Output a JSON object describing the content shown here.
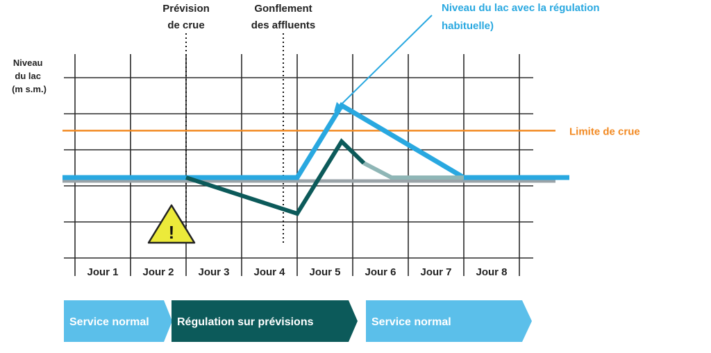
{
  "chart_data": {
    "type": "line",
    "ylabel": "Niveau du lac (m s.m.)",
    "categories": [
      "Jour 1",
      "Jour 2",
      "Jour 3",
      "Jour 4",
      "Jour 5",
      "Jour 6",
      "Jour 7",
      "Jour 8"
    ],
    "x": [
      0,
      2,
      4,
      4.8,
      7,
      8
    ],
    "series": [
      {
        "name": "Niveau du lac avec la régulation habituelle)",
        "color": "#29a8e0",
        "x": [
          0,
          4.0,
          4.8,
          7.0,
          8.9
        ],
        "y": [
          0,
          0,
          2,
          0,
          0
        ]
      },
      {
        "name": "",
        "color": "#0c5a5a",
        "x": [
          2.0,
          4.0,
          4.8,
          5.2
        ],
        "y": [
          0,
          -1,
          1,
          0.4
        ]
      },
      {
        "name": "",
        "color": "#8fb6b6",
        "x": [
          5.2,
          5.7,
          7.0
        ],
        "y": [
          0.4,
          0,
          0
        ]
      }
    ],
    "reference_line": {
      "label": "Limite de crue",
      "y": 1.3,
      "color": "#f28a23"
    },
    "events": [
      {
        "label_line1": "Prévision",
        "label_line2": "de crue",
        "x": 2.0
      },
      {
        "label_line1": "Gonflement",
        "label_line2": "des affluents",
        "x": 3.75
      }
    ],
    "warning_icon": "warning-triangle-icon",
    "phases": [
      {
        "label": "Service normal",
        "color": "#5bbfea",
        "from": "Jour 1",
        "to": "Jour 2"
      },
      {
        "label": "Régulation sur prévisions",
        "color": "#0c5a5a",
        "from": "Jour 3",
        "to": "Jour 5"
      },
      {
        "label": "Service normal",
        "color": "#5bbfea",
        "from": "Jour 6",
        "to": "Jour 7"
      }
    ],
    "grid": true
  },
  "ylabel_lines": [
    "Niveau",
    "du lac",
    "(m s.m.)"
  ],
  "annotation": {
    "line1": "Niveau du lac avec la régulation",
    "line2": "habituelle)"
  }
}
